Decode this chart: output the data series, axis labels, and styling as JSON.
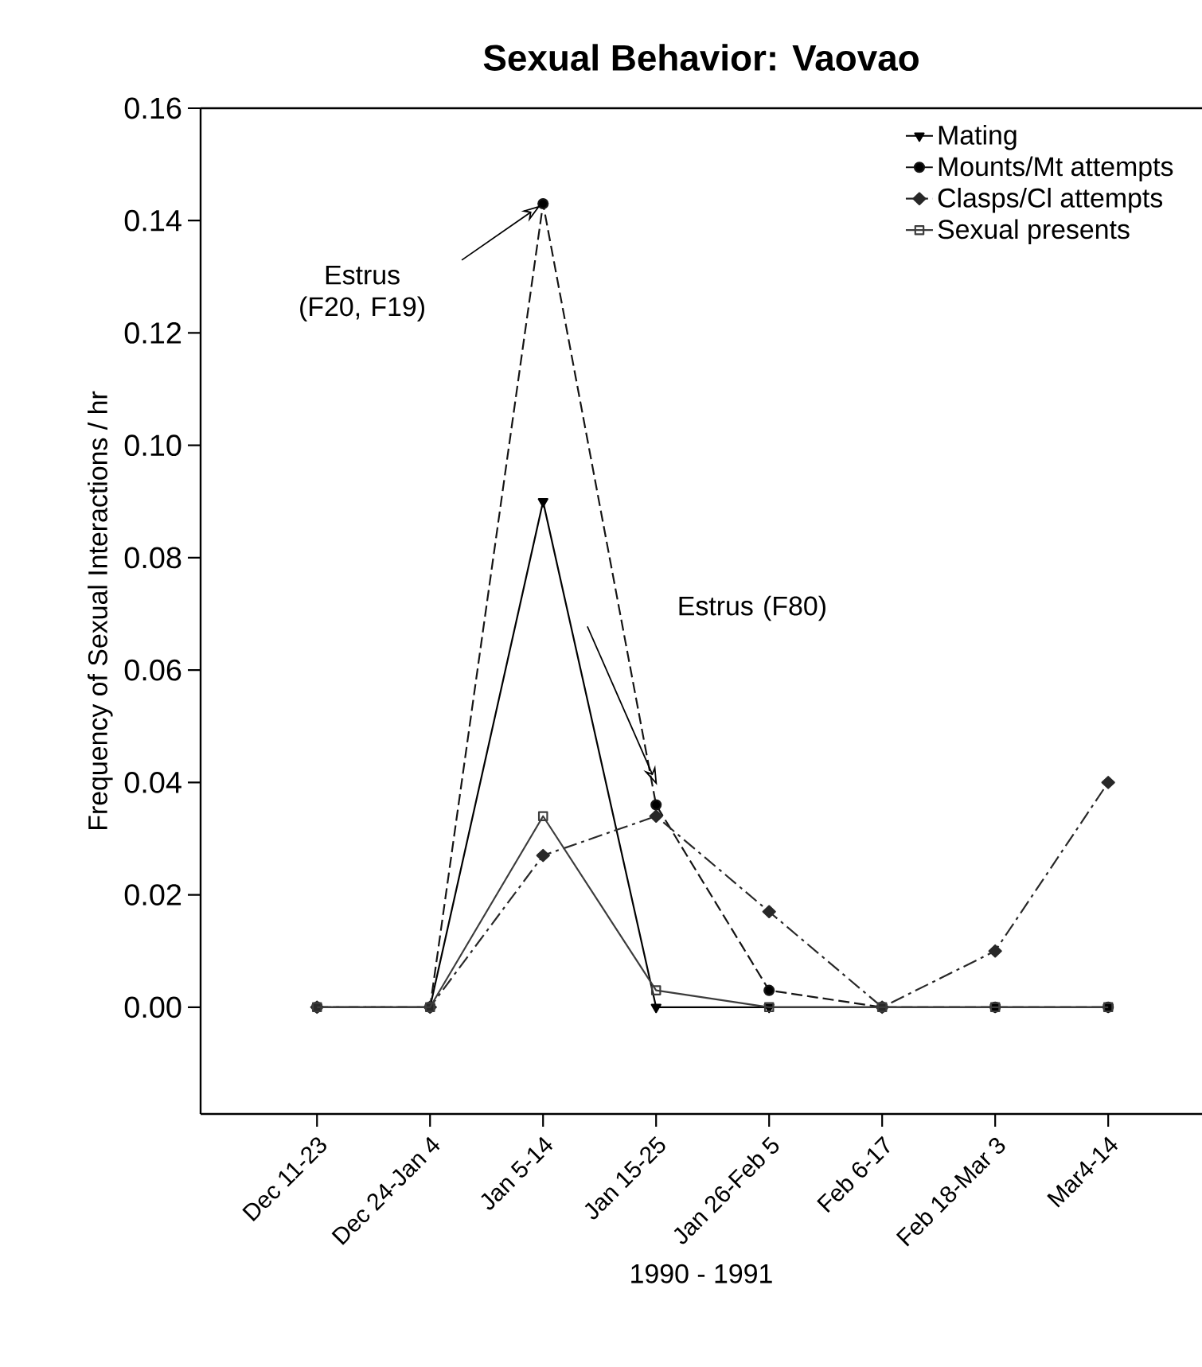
{
  "chart_data": {
    "type": "line",
    "title": "Sexual Behavior: Vaovao",
    "xlabel": "1990 - 1991",
    "ylabel": "Frequency of Sexual Interactions / hr",
    "categories": [
      "Dec 11-23",
      "Dec 24-Jan 4",
      "Jan 5-14",
      "Jan 15-25",
      "Jan 26-Feb 5",
      "Feb 6-17",
      "Feb 18-Mar 3",
      "Mar4-14"
    ],
    "series": [
      {
        "name": "Mating",
        "color": "#000000",
        "marker": "triangle",
        "line_style": "solid",
        "values": [
          0,
          0,
          0.09,
          0,
          0,
          0,
          0,
          0
        ]
      },
      {
        "name": "Mounts/Mt attempts",
        "color": "#141414",
        "marker": "circle",
        "line_style": "dashed",
        "values": [
          0,
          0,
          0.143,
          0.036,
          0.003,
          0,
          0,
          0
        ]
      },
      {
        "name": "Clasps/Cl attempts",
        "color": "#282828",
        "marker": "diamond",
        "line_style": "dashdot",
        "values": [
          0,
          0,
          0.027,
          0.034,
          0.017,
          0,
          0.01,
          0.04
        ]
      },
      {
        "name": "Sexual presents",
        "color": "#3c3c3c",
        "marker": "square",
        "line_style": "solid",
        "values": [
          0,
          0,
          0.034,
          0.003,
          0,
          0,
          0,
          0
        ]
      }
    ],
    "ylim": [
      -0.019,
      0.16
    ],
    "yticks": [
      {
        "value": 0,
        "label": "0.00"
      },
      {
        "value": 0.02,
        "label": "0.02"
      },
      {
        "value": 0.04,
        "label": "0.04"
      },
      {
        "value": 0.06,
        "label": "0.06"
      },
      {
        "value": 0.08,
        "label": "0.08"
      },
      {
        "value": 0.1,
        "label": "0.10"
      },
      {
        "value": 0.12,
        "label": "0.12"
      },
      {
        "value": 0.14,
        "label": "0.14"
      },
      {
        "value": 0.16,
        "label": "0.16"
      }
    ],
    "legend": "top right",
    "grid": false,
    "annotations": [
      "Estrus (F20, F19)",
      "Estrus (F80)"
    ]
  }
}
